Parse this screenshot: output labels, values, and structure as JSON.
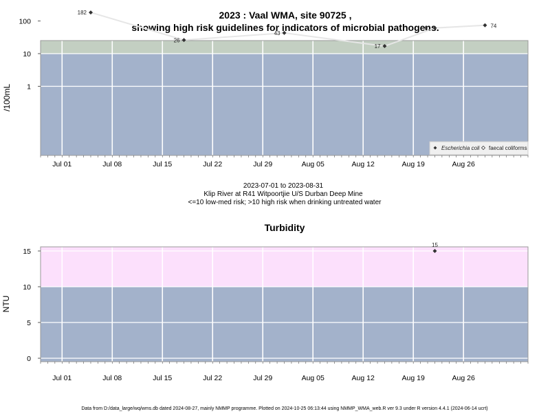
{
  "colors": {
    "high_risk": "#c3cfc2",
    "low_risk": "#a3b2cb",
    "turb_high": "#fce0fc",
    "grid": "#ffffff",
    "line": "#e6e6e6",
    "point": "#333333"
  },
  "chart_data": [
    {
      "type": "line",
      "title_line1": "2023 : Vaal WMA, site 90725 ,",
      "title_line2": "showing high risk guidelines for indicators of microbial pathogens.",
      "ylabel": "/100mL",
      "yscale": "log",
      "x_tick_labels": [
        "Jul 01",
        "Jul 08",
        "Jul 15",
        "Jul 22",
        "Jul 29",
        "Aug 05",
        "Aug 12",
        "Aug 19",
        "Aug 26"
      ],
      "x_ticks": [
        "2023-07-01",
        "2023-07-08",
        "2023-07-15",
        "2023-07-22",
        "2023-07-29",
        "2023-08-05",
        "2023-08-12",
        "2023-08-19",
        "2023-08-26"
      ],
      "xlim": [
        "2023-06-28",
        "2023-09-04"
      ],
      "y_tick_labels": [
        "100",
        "10",
        "1"
      ],
      "y_ticks": [
        100,
        10,
        1
      ],
      "ylim": [
        0.1,
        250
      ],
      "threshold": 10,
      "grid": true,
      "legend_position": "bottom-right",
      "legend": [
        {
          "name": "Escherichia coli",
          "marker": "filled-diamond"
        },
        {
          "name": "faecal coliforms",
          "marker": "open-diamond"
        }
      ],
      "series": [
        {
          "name": "Escherichia coli",
          "points": [
            {
              "x": "2023-07-05",
              "y": 182,
              "label": "182"
            },
            {
              "x": "2023-07-18",
              "y": 26,
              "label": "26"
            },
            {
              "x": "2023-08-01",
              "y": 43,
              "label": "43"
            },
            {
              "x": "2023-08-15",
              "y": 17,
              "label": "17"
            },
            {
              "x": "2023-08-22",
              "y": 61,
              "label": "61"
            },
            {
              "x": "2023-08-29",
              "y": 74,
              "label": "74"
            }
          ]
        }
      ]
    },
    {
      "type": "scatter",
      "title": "Turbidity",
      "ylabel": "NTU",
      "x_tick_labels": [
        "Jul 01",
        "Jul 08",
        "Jul 15",
        "Jul 22",
        "Jul 29",
        "Aug 05",
        "Aug 12",
        "Aug 19",
        "Aug 26"
      ],
      "x_ticks": [
        "2023-07-01",
        "2023-07-08",
        "2023-07-15",
        "2023-07-22",
        "2023-07-29",
        "2023-08-05",
        "2023-08-12",
        "2023-08-19",
        "2023-08-26"
      ],
      "xlim": [
        "2023-06-28",
        "2023-09-04"
      ],
      "y_tick_labels": [
        "15",
        "10",
        "5",
        "0"
      ],
      "y_ticks": [
        15,
        10,
        5,
        0
      ],
      "ylim": [
        -0.6,
        15.6
      ],
      "threshold": 10,
      "grid": true,
      "series": [
        {
          "points": [
            {
              "x": "2023-08-22",
              "y": 15,
              "label": "15"
            }
          ]
        }
      ]
    }
  ],
  "caption": {
    "date_range": "2023-07-01 to 2023-08-31",
    "site": "Klip River at R41 Witpoortjie U/S Durban Deep Mine",
    "risk_note": "<=10 low-med risk; >10 high risk when drinking untreated water"
  },
  "footer": "Data from D:/data_large/wq/wms.db dated 2024-08-27, mainly NMMP programme. Plotted on 2024-10-25 06:13:44 using NMMP_WMA_web.R ver 9.3 under R version 4.4.1 (2024-06-14 ucrt)"
}
